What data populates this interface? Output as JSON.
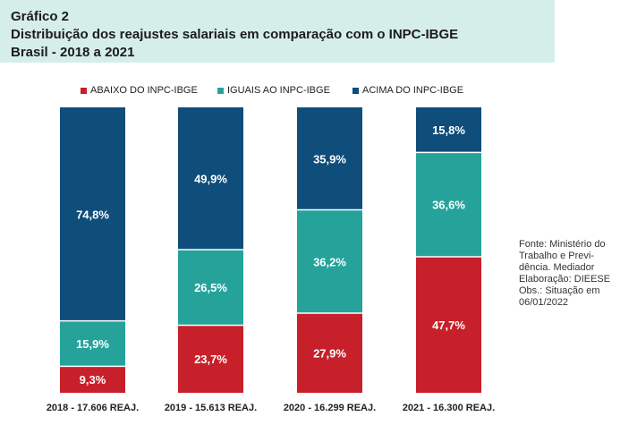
{
  "header": {
    "line1": "Gráfico 2",
    "line2": "Distribuição dos reajustes salariais em comparação com o INPC-IBGE",
    "line3": "Brasil - 2018 a 2021"
  },
  "source": {
    "lines": [
      "Fonte: Ministério do",
      "Trabalho e Previ-",
      "dência. Mediador",
      "Elaboração: DIEESE",
      "Obs.: Situação em",
      "06/01/2022"
    ]
  },
  "colors": {
    "abaixo": "#c8202a",
    "iguais": "#25a39b",
    "acima": "#0f4d7a"
  },
  "chart_data": {
    "type": "bar",
    "stacked": true,
    "title": "Distribuição dos reajustes salariais em comparação com o INPC-IBGE",
    "legend_position": "top",
    "categories": [
      "2018 - 17.606 REAJ.",
      "2019 - 15.613 REAJ.",
      "2020 - 16.299 REAJ.",
      "2021 - 16.300 REAJ."
    ],
    "series": [
      {
        "name": "ABAIXO DO INPC-IBGE",
        "key": "abaixo",
        "values": [
          9.3,
          23.7,
          27.9,
          47.7
        ],
        "labels": [
          "9,3%",
          "23,7%",
          "27,9%",
          "47,7%"
        ]
      },
      {
        "name": "IGUAIS AO INPC-IBGE",
        "key": "iguais",
        "values": [
          15.9,
          26.5,
          36.2,
          36.6
        ],
        "labels": [
          "15,9%",
          "26,5%",
          "36,2%",
          "36,6%"
        ]
      },
      {
        "name": "ACIMA DO INPC-IBGE",
        "key": "acima",
        "values": [
          74.8,
          49.9,
          35.9,
          15.8
        ],
        "labels": [
          "74,8%",
          "49,9%",
          "35,9%",
          "15,8%"
        ]
      }
    ],
    "ylim": [
      0,
      100
    ]
  }
}
